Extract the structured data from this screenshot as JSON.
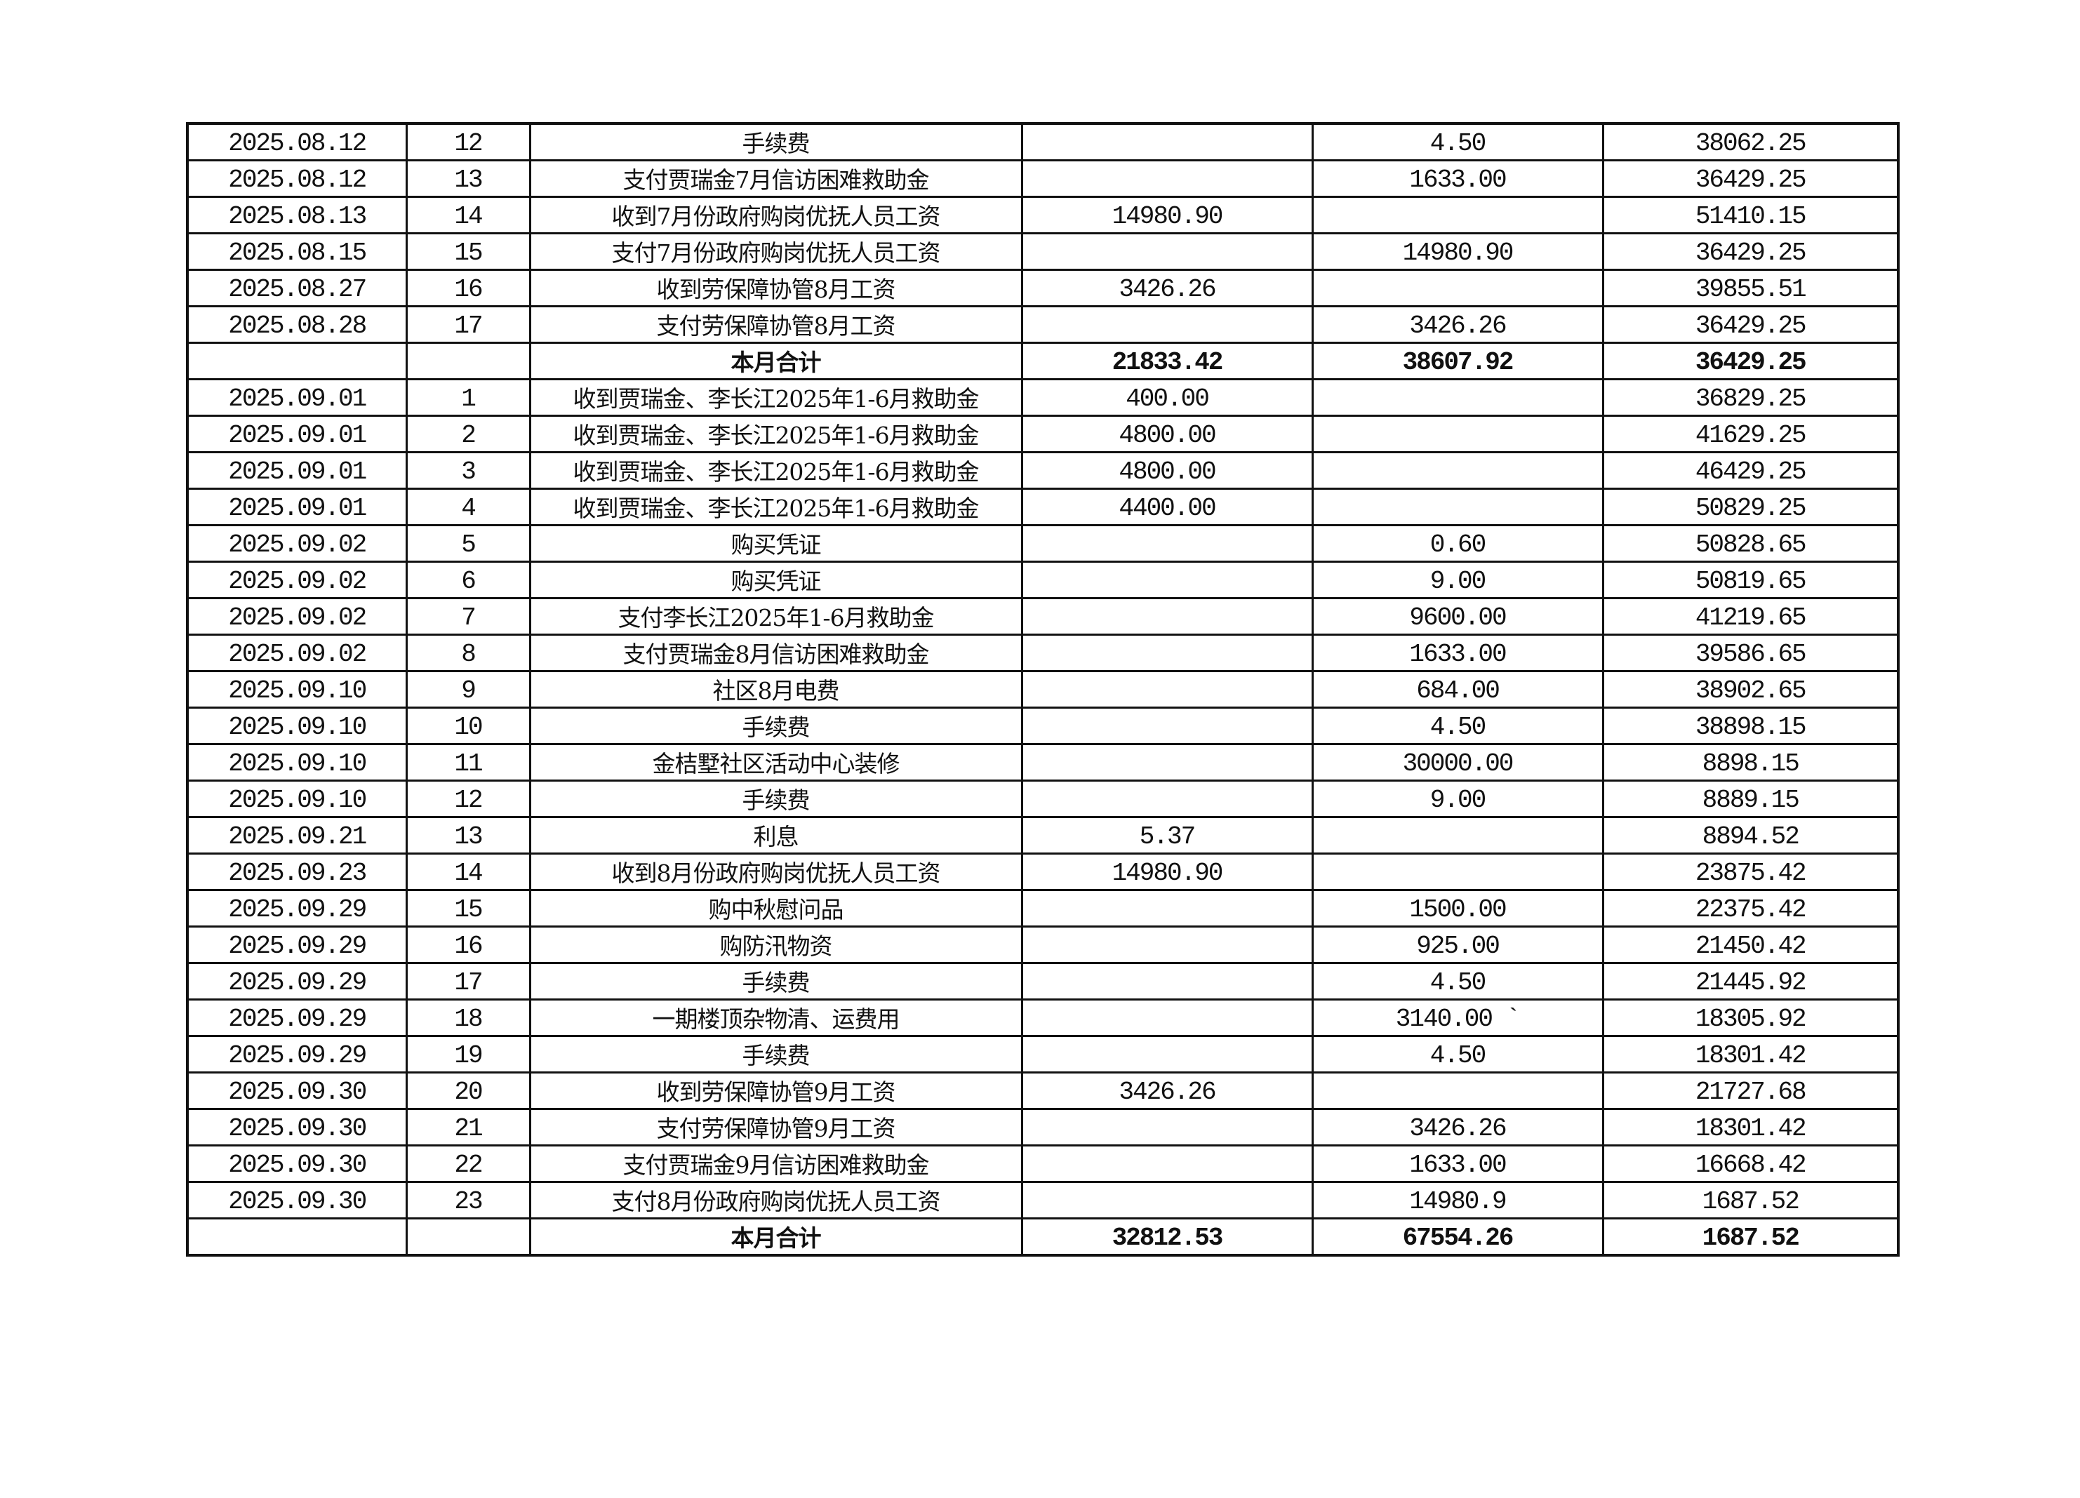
{
  "rows": [
    {
      "date": "2025.08.12",
      "no": "12",
      "desc": "手续费",
      "income": "",
      "expense": "4.50",
      "balance": "38062.25"
    },
    {
      "date": "2025.08.12",
      "no": "13",
      "desc": "支付贾瑞金7月信访困难救助金",
      "income": "",
      "expense": "1633.00",
      "balance": "36429.25"
    },
    {
      "date": "2025.08.13",
      "no": "14",
      "desc": "收到7月份政府购岗优抚人员工资",
      "income": "14980.90",
      "expense": "",
      "balance": "51410.15"
    },
    {
      "date": "2025.08.15",
      "no": "15",
      "desc": "支付7月份政府购岗优抚人员工资",
      "income": "",
      "expense": "14980.90",
      "balance": "36429.25"
    },
    {
      "date": "2025.08.27",
      "no": "16",
      "desc": "收到劳保障协管8月工资",
      "income": "3426.26",
      "expense": "",
      "balance": "39855.51"
    },
    {
      "date": "2025.08.28",
      "no": "17",
      "desc": "支付劳保障协管8月工资",
      "income": "",
      "expense": "3426.26",
      "balance": "36429.25"
    },
    {
      "date": "",
      "no": "",
      "desc": "本月合计",
      "income": "21833.42",
      "expense": "38607.92",
      "balance": "36429.25",
      "total": true
    },
    {
      "date": "2025.09.01",
      "no": "1",
      "desc": "收到贾瑞金、李长江2025年1-6月救助金",
      "income": "400.00",
      "expense": "",
      "balance": "36829.25"
    },
    {
      "date": "2025.09.01",
      "no": "2",
      "desc": "收到贾瑞金、李长江2025年1-6月救助金",
      "income": "4800.00",
      "expense": "",
      "balance": "41629.25"
    },
    {
      "date": "2025.09.01",
      "no": "3",
      "desc": "收到贾瑞金、李长江2025年1-6月救助金",
      "income": "4800.00",
      "expense": "",
      "balance": "46429.25"
    },
    {
      "date": "2025.09.01",
      "no": "4",
      "desc": "收到贾瑞金、李长江2025年1-6月救助金",
      "income": "4400.00",
      "expense": "",
      "balance": "50829.25"
    },
    {
      "date": "2025.09.02",
      "no": "5",
      "desc": "购买凭证",
      "income": "",
      "expense": "0.60",
      "balance": "50828.65"
    },
    {
      "date": "2025.09.02",
      "no": "6",
      "desc": "购买凭证",
      "income": "",
      "expense": "9.00",
      "balance": "50819.65"
    },
    {
      "date": "2025.09.02",
      "no": "7",
      "desc": "支付李长江2025年1-6月救助金",
      "income": "",
      "expense": "9600.00",
      "balance": "41219.65"
    },
    {
      "date": "2025.09.02",
      "no": "8",
      "desc": "支付贾瑞金8月信访困难救助金",
      "income": "",
      "expense": "1633.00",
      "balance": "39586.65"
    },
    {
      "date": "2025.09.10",
      "no": "9",
      "desc": "社区8月电费",
      "income": "",
      "expense": "684.00",
      "balance": "38902.65"
    },
    {
      "date": "2025.09.10",
      "no": "10",
      "desc": "手续费",
      "income": "",
      "expense": "4.50",
      "balance": "38898.15"
    },
    {
      "date": "2025.09.10",
      "no": "11",
      "desc": "金桔墅社区活动中心装修",
      "income": "",
      "expense": "30000.00",
      "balance": "8898.15"
    },
    {
      "date": "2025.09.10",
      "no": "12",
      "desc": "手续费",
      "income": "",
      "expense": "9.00",
      "balance": "8889.15"
    },
    {
      "date": "2025.09.21",
      "no": "13",
      "desc": "利息",
      "income": "5.37",
      "expense": "",
      "balance": "8894.52"
    },
    {
      "date": "2025.09.23",
      "no": "14",
      "desc": "收到8月份政府购岗优抚人员工资",
      "income": "14980.90",
      "expense": "",
      "balance": "23875.42"
    },
    {
      "date": "2025.09.29",
      "no": "15",
      "desc": "购中秋慰问品",
      "income": "",
      "expense": "1500.00",
      "balance": "22375.42"
    },
    {
      "date": "2025.09.29",
      "no": "16",
      "desc": "购防汛物资",
      "income": "",
      "expense": "925.00",
      "balance": "21450.42"
    },
    {
      "date": "2025.09.29",
      "no": "17",
      "desc": "手续费",
      "income": "",
      "expense": "4.50",
      "balance": "21445.92"
    },
    {
      "date": "2025.09.29",
      "no": "18",
      "desc": "一期楼顶杂物清、运费用",
      "income": "",
      "expense": "3140.00 `",
      "balance": "18305.92"
    },
    {
      "date": "2025.09.29",
      "no": "19",
      "desc": "手续费",
      "income": "",
      "expense": "4.50",
      "balance": "18301.42"
    },
    {
      "date": "2025.09.30",
      "no": "20",
      "desc": "收到劳保障协管9月工资",
      "income": "3426.26",
      "expense": "",
      "balance": "21727.68"
    },
    {
      "date": "2025.09.30",
      "no": "21",
      "desc": "支付劳保障协管9月工资",
      "income": "",
      "expense": "3426.26",
      "balance": "18301.42"
    },
    {
      "date": "2025.09.30",
      "no": "22",
      "desc": "支付贾瑞金9月信访困难救助金",
      "income": "",
      "expense": "1633.00",
      "balance": "16668.42"
    },
    {
      "date": "2025.09.30",
      "no": "23",
      "desc": "支付8月份政府购岗优抚人员工资",
      "income": "",
      "expense": "14980.9",
      "balance": "1687.52"
    },
    {
      "date": "",
      "no": "",
      "desc": "本月合计",
      "income": "32812.53",
      "expense": "67554.26",
      "balance": "1687.52",
      "total": true
    }
  ]
}
